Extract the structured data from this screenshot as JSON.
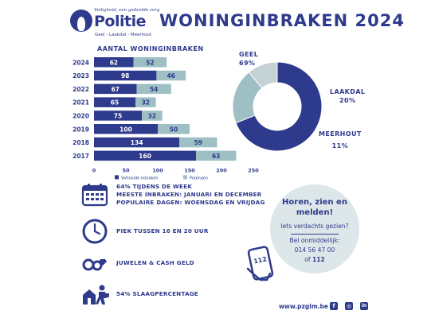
{
  "logo": {
    "tagline": "Veiligheid, een gedeelde zorg",
    "wordmark": "Politie",
    "zone": "Geel - Laakdal - Meerhout"
  },
  "title": "WONINGINBRAKEN 2024",
  "chart_data": [
    {
      "type": "bar",
      "orientation": "horizontal",
      "stacked": true,
      "title": "AANTAL WONINGINBRAKEN",
      "categories": [
        "2024",
        "2023",
        "2022",
        "2021",
        "2020",
        "2019",
        "2018",
        "2017"
      ],
      "series": [
        {
          "name": "Voltooide inbraken",
          "color": "#2e3a8c",
          "values": [
            62,
            98,
            67,
            65,
            75,
            100,
            134,
            160
          ]
        },
        {
          "name": "Pogingen",
          "color": "#9ebfc4",
          "values": [
            52,
            46,
            54,
            32,
            32,
            50,
            59,
            63
          ]
        }
      ],
      "xlim": [
        0,
        250
      ],
      "xticks": [
        "0",
        "50",
        "100",
        "150",
        "200",
        "250"
      ],
      "legend_position": "bottom",
      "grid": false
    },
    {
      "type": "pie",
      "donut": true,
      "slices": [
        {
          "label": "GEEL",
          "pct_label": "69%",
          "value": 69,
          "color": "#2e3a8c"
        },
        {
          "label": "LAAKDAL",
          "pct_label": "20%",
          "value": 20,
          "color": "#9ebfc4"
        },
        {
          "label": "MEERHOUT",
          "pct_label": "11%",
          "value": 11,
          "color": "#c4d2d6"
        }
      ]
    }
  ],
  "info": {
    "week_lines": [
      "64% TIJDENS DE WEEK",
      "MEESTE INBRAKEN: JANUARI EN DECEMBER",
      "POPULAIRE DAGEN: WOENSDAG EN VRIJDAG"
    ],
    "peak": "PIEK TUSSEN 16 EN 20 UUR",
    "loot": "JUWELEN & CASH GELD",
    "success": "54% SLAAGPERCENTAGE"
  },
  "callout": {
    "title_line1": "Horen, zien en",
    "title_line2": "melden!",
    "question": "Iets verdachts gezien?",
    "call": "Bel onmiddellijk:",
    "phone": "014 56 47 00",
    "or_prefix": "of",
    "emergency": "112",
    "phone_icon_number": "112"
  },
  "footer": {
    "url": "www.pzglm.be",
    "facebook_glyph": "f",
    "instagram_glyph": "◎",
    "linkedin_glyph": "in"
  },
  "icons": {
    "calendar": "calendar-icon",
    "clock": "clock-icon",
    "jewelry": "jewelry-icon",
    "burglar": "burglar-icon",
    "phone": "phone-icon"
  },
  "colors": {
    "primary": "#2e3a8c",
    "secondary": "#9ebfc4",
    "tertiary": "#c4d2d6",
    "bubble": "#dde7ea"
  }
}
